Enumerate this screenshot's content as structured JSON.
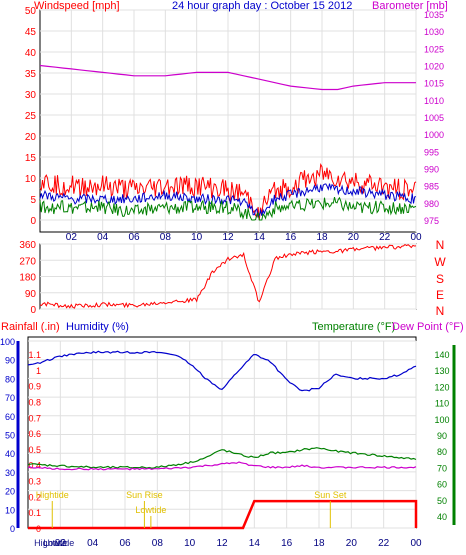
{
  "panels": {
    "top": {
      "title": "24 hour graph day : October 15 2012",
      "left_label": "Windspeed [mph]",
      "right_label": "Barometer [mb]",
      "left_ticks": [
        "50",
        "45",
        "40",
        "35",
        "30",
        "25",
        "20",
        "15",
        "10",
        "5",
        "0"
      ],
      "right_ticks": [
        "1035",
        "1030",
        "1025",
        "1020",
        "1015",
        "1010",
        "1005",
        "1000",
        "995",
        "990",
        "985",
        "980",
        "975"
      ]
    },
    "middle": {
      "left_ticks": [
        "360",
        "270",
        "180",
        "90",
        "0"
      ],
      "compass": [
        "N",
        "W",
        "S",
        "E",
        "N"
      ]
    },
    "bottom": {
      "rain_label": "Rainfall (.in)",
      "humidity_label": "Humidity (%)",
      "temp_label": "Temperature (°F)",
      "dew_label": "Dew Point (°F)",
      "humidity_ticks": [
        "100",
        "90",
        "80",
        "70",
        "60",
        "50",
        "40",
        "30",
        "20",
        "10",
        "0"
      ],
      "rain_ticks": [
        "1.1",
        "1",
        "0.9",
        "0.8",
        "0.7",
        "0.6",
        "0.5",
        "0.4",
        "0.3",
        "0.2",
        "0.1",
        "0"
      ],
      "temp_ticks": [
        "140",
        "130",
        "120",
        "110",
        "100",
        "90",
        "80",
        "70",
        "60",
        "50",
        "40"
      ],
      "annotations": [
        "Hightide",
        "Sun Rise",
        "Lowtide",
        "Sun Set",
        "Hightide",
        "Lowtide"
      ]
    },
    "x_ticks": [
      "02",
      "04",
      "06",
      "08",
      "10",
      "12",
      "14",
      "16",
      "18",
      "20",
      "22",
      "00"
    ]
  },
  "colors": {
    "wind": "#ff0000",
    "gust_avg": "#0000cc",
    "wind_low": "#008000",
    "barometer": "#cc00cc",
    "humidity": "#0000cc",
    "temperature": "#008000",
    "dewpoint": "#cc00cc",
    "rain": "#ff0000",
    "direction": "#ff0000",
    "annotation": "#e0c000",
    "grid": "#e0e0e0",
    "axis_frame": "#000000"
  },
  "chart_data": [
    {
      "type": "line",
      "title": "24 hour graph day : October 15 2012",
      "ylabel": "Windspeed [mph]",
      "y2label": "Barometer [mb]",
      "ylim": [
        0,
        50
      ],
      "y2lim": [
        975,
        1035
      ],
      "x": [
        0,
        2,
        4,
        6,
        8,
        10,
        12,
        13,
        14,
        15,
        16,
        18,
        19,
        20,
        22,
        24
      ],
      "series": [
        {
          "values": [
            9,
            8,
            8,
            7,
            8,
            8,
            7,
            6,
            2,
            7,
            8,
            11,
            10,
            9,
            8,
            7
          ]
        },
        {
          "values": [
            6,
            5,
            5,
            5,
            6,
            5,
            5,
            4,
            1,
            5,
            6,
            8,
            7,
            7,
            6,
            5
          ]
        },
        {
          "values": [
            3,
            3,
            3,
            2,
            3,
            3,
            3,
            2,
            0,
            3,
            3,
            4,
            4,
            3,
            3,
            3
          ]
        },
        {
          "axis": "y2",
          "values": [
            1020,
            1019,
            1018,
            1017,
            1017,
            1018,
            1018,
            1017,
            1016,
            1015,
            1014,
            1013,
            1013,
            1014,
            1015,
            1015
          ]
        }
      ]
    },
    {
      "type": "line",
      "ylim": [
        0,
        360
      ],
      "x": [
        0,
        2,
        4,
        6,
        7,
        8,
        10,
        11,
        12,
        13,
        14,
        15,
        16,
        17,
        18,
        19,
        20,
        22,
        23,
        24
      ],
      "series": [
        {
          "values": [
            30,
            15,
            25,
            20,
            30,
            40,
            50,
            200,
            280,
            300,
            30,
            280,
            300,
            310,
            320,
            320,
            330,
            340,
            345,
            350
          ]
        }
      ]
    },
    {
      "type": "line",
      "ylabel": "Humidity (%)",
      "ylim": [
        0,
        100
      ],
      "x": [
        0,
        1,
        2,
        4,
        6,
        8,
        9,
        10,
        11,
        12,
        13,
        14,
        15,
        16,
        17,
        18,
        19,
        20,
        22,
        23,
        24
      ],
      "series": [
        {
          "values": [
            87,
            89,
            92,
            94,
            94,
            94,
            93,
            88,
            80,
            74,
            84,
            93,
            89,
            79,
            73,
            75,
            82,
            80,
            80,
            82,
            87
          ]
        }
      ]
    },
    {
      "type": "line",
      "y2label": "Temperature (°F)",
      "y2lim": [
        40,
        140
      ],
      "x": [
        0,
        2,
        4,
        6,
        8,
        10,
        11,
        12,
        13,
        14,
        15,
        16,
        17,
        18,
        19,
        20,
        22,
        24
      ],
      "series": [
        {
          "values": [
            72,
            71,
            70,
            70,
            70,
            73,
            76,
            81,
            78,
            76,
            79,
            79,
            81,
            82,
            80,
            79,
            77,
            75
          ]
        },
        {
          "values": [
            70,
            69,
            69,
            69,
            69,
            70,
            71,
            72,
            73,
            71,
            70,
            70,
            71,
            70,
            70,
            70,
            70,
            70
          ]
        }
      ]
    },
    {
      "type": "area",
      "ylabel": "Rainfall (.in)",
      "ylim": [
        0,
        1.1
      ],
      "x": [
        0,
        13.3,
        14,
        24,
        24.05
      ],
      "series": [
        {
          "values": [
            0,
            0,
            0.17,
            0.17,
            0
          ]
        }
      ]
    }
  ],
  "events": [
    {
      "label": "Hightide",
      "hour": 1.5,
      "row": "top"
    },
    {
      "label": "Sun Rise",
      "hour": 7.2,
      "row": "top"
    },
    {
      "label": "Lowtide",
      "hour": 7.6,
      "row": "mid"
    },
    {
      "label": "Sun Set",
      "hour": 18.7,
      "row": "top"
    },
    {
      "label": "Hightide",
      "hour": 1.4,
      "row": "axis"
    },
    {
      "label": "Lowtide",
      "hour": 1.9,
      "row": "axis"
    }
  ]
}
